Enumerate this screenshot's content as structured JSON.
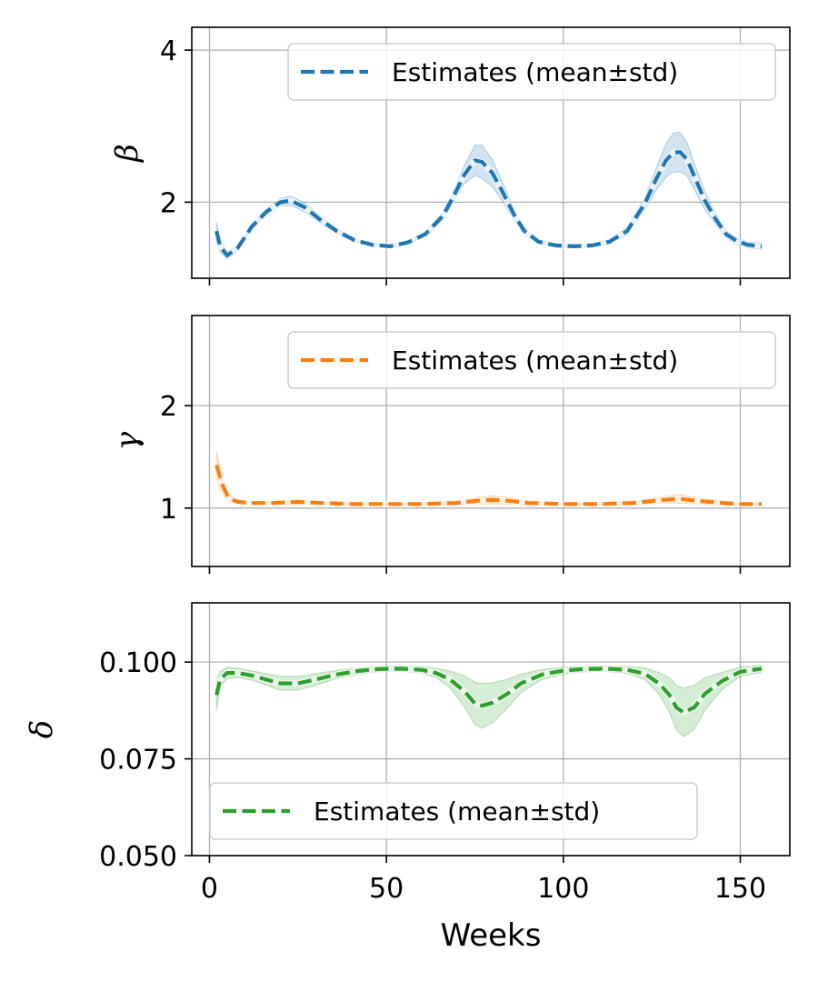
{
  "chart_data": [
    {
      "type": "line",
      "name": "beta",
      "ylabel": "β",
      "xlabel": "",
      "xlim": [
        -5,
        164
      ],
      "ylim": [
        1.0,
        4.3
      ],
      "xticks": [
        0,
        50,
        100,
        150
      ],
      "xtick_labels": [
        "",
        "",
        "",
        ""
      ],
      "yticks": [
        2,
        4
      ],
      "ytick_labels": [
        "2",
        "4"
      ],
      "grid": true,
      "color": "#1f77b4",
      "legend": {
        "label": "Estimates (mean±std)",
        "position": "top-right"
      },
      "series": [
        {
          "name": "Estimates (mean±std)",
          "x": [
            2,
            3,
            5,
            8,
            12,
            16,
            20,
            23,
            27,
            31,
            36,
            41,
            46,
            51,
            56,
            61,
            66,
            69,
            72,
            75,
            77,
            80,
            83,
            86,
            89,
            93,
            98,
            103,
            108,
            113,
            118,
            123,
            126,
            129,
            131,
            133,
            135,
            137,
            140,
            143,
            146,
            149,
            152,
            156
          ],
          "mean": [
            1.62,
            1.42,
            1.3,
            1.4,
            1.68,
            1.87,
            2.0,
            2.02,
            1.93,
            1.78,
            1.62,
            1.5,
            1.44,
            1.42,
            1.47,
            1.58,
            1.82,
            2.08,
            2.36,
            2.55,
            2.53,
            2.38,
            2.12,
            1.84,
            1.62,
            1.48,
            1.43,
            1.42,
            1.43,
            1.48,
            1.62,
            1.98,
            2.28,
            2.55,
            2.65,
            2.66,
            2.56,
            2.34,
            2.02,
            1.78,
            1.58,
            1.49,
            1.44,
            1.42
          ],
          "std": [
            0.12,
            0.08,
            0.05,
            0.03,
            0.03,
            0.04,
            0.05,
            0.06,
            0.06,
            0.05,
            0.03,
            0.02,
            0.02,
            0.02,
            0.02,
            0.03,
            0.05,
            0.07,
            0.12,
            0.2,
            0.22,
            0.18,
            0.12,
            0.07,
            0.04,
            0.02,
            0.02,
            0.02,
            0.02,
            0.03,
            0.05,
            0.08,
            0.14,
            0.22,
            0.26,
            0.26,
            0.22,
            0.17,
            0.12,
            0.07,
            0.05,
            0.04,
            0.04,
            0.04
          ]
        }
      ]
    },
    {
      "type": "line",
      "name": "gamma",
      "ylabel": "γ",
      "xlabel": "",
      "xlim": [
        -5,
        164
      ],
      "ylim": [
        0.43,
        2.88
      ],
      "xticks": [
        0,
        50,
        100,
        150
      ],
      "xtick_labels": [
        "",
        "",
        "",
        ""
      ],
      "yticks": [
        1,
        2
      ],
      "ytick_labels": [
        "1",
        "2"
      ],
      "grid": true,
      "color": "#ff7f0e",
      "legend": {
        "label": "Estimates (mean±std)",
        "position": "top-right"
      },
      "series": [
        {
          "name": "Estimates (mean±std)",
          "x": [
            2,
            3,
            4,
            5,
            6,
            8,
            12,
            18,
            25,
            32,
            40,
            50,
            60,
            70,
            75,
            80,
            85,
            90,
            100,
            110,
            120,
            128,
            133,
            138,
            145,
            150,
            156
          ],
          "mean": [
            1.42,
            1.3,
            1.2,
            1.13,
            1.09,
            1.06,
            1.05,
            1.05,
            1.06,
            1.05,
            1.04,
            1.04,
            1.04,
            1.05,
            1.07,
            1.08,
            1.07,
            1.05,
            1.04,
            1.04,
            1.05,
            1.08,
            1.09,
            1.07,
            1.05,
            1.04,
            1.04
          ],
          "std": [
            0.13,
            0.1,
            0.07,
            0.05,
            0.03,
            0.02,
            0.01,
            0.01,
            0.02,
            0.01,
            0.01,
            0.01,
            0.01,
            0.02,
            0.03,
            0.04,
            0.03,
            0.02,
            0.01,
            0.01,
            0.02,
            0.03,
            0.04,
            0.03,
            0.02,
            0.01,
            0.01
          ]
        }
      ]
    },
    {
      "type": "line",
      "name": "delta",
      "ylabel": "δ",
      "xlabel": "Weeks",
      "xlim": [
        -5,
        164
      ],
      "ylim": [
        0.05,
        0.1153
      ],
      "xticks": [
        0,
        50,
        100,
        150
      ],
      "xtick_labels": [
        "0",
        "50",
        "100",
        "150"
      ],
      "yticks": [
        0.05,
        0.075,
        0.1
      ],
      "ytick_labels": [
        "0.050",
        "0.075",
        "0.100"
      ],
      "grid": true,
      "color": "#2ca02c",
      "legend": {
        "label": "Estimates (mean±std)",
        "position": "bottom-left"
      },
      "series": [
        {
          "name": "Estimates (mean±std)",
          "x": [
            2,
            3,
            5,
            8,
            12,
            16,
            20,
            25,
            30,
            36,
            42,
            48,
            54,
            60,
            64,
            68,
            72,
            75,
            77,
            80,
            84,
            88,
            94,
            100,
            106,
            112,
            118,
            123,
            127,
            130,
            132,
            134,
            137,
            140,
            145,
            150,
            156
          ],
          "mean": [
            0.0915,
            0.0955,
            0.0972,
            0.0972,
            0.0965,
            0.0955,
            0.0945,
            0.0945,
            0.0955,
            0.0968,
            0.0977,
            0.0982,
            0.0983,
            0.098,
            0.0972,
            0.0955,
            0.0925,
            0.0893,
            0.0887,
            0.0895,
            0.0917,
            0.0945,
            0.0968,
            0.0978,
            0.0982,
            0.0983,
            0.098,
            0.097,
            0.0945,
            0.0915,
            0.0882,
            0.087,
            0.0883,
            0.0918,
            0.0952,
            0.0975,
            0.0983
          ],
          "std": [
            0.004,
            0.002,
            0.0015,
            0.0012,
            0.0012,
            0.0015,
            0.0018,
            0.0018,
            0.0015,
            0.001,
            0.0008,
            0.0007,
            0.0007,
            0.0008,
            0.0012,
            0.0022,
            0.004,
            0.0055,
            0.0058,
            0.0052,
            0.0038,
            0.0024,
            0.0013,
            0.0009,
            0.0007,
            0.0007,
            0.0009,
            0.0015,
            0.0028,
            0.0045,
            0.0058,
            0.0063,
            0.0057,
            0.0042,
            0.0022,
            0.0012,
            0.0009
          ]
        }
      ]
    }
  ]
}
